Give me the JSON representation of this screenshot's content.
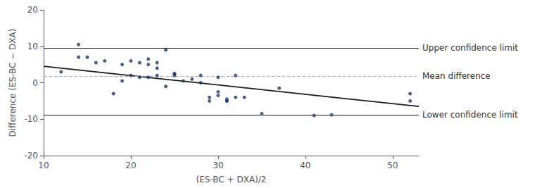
{
  "chart_data": {
    "type": "scatter",
    "xlabel": "(ES-BC + DXA)/2",
    "ylabel": "Difference (ES-BC − DXA)",
    "xlim": [
      10,
      53
    ],
    "ylim": [
      -20,
      20
    ],
    "xticks": [
      10,
      20,
      30,
      40,
      50
    ],
    "yticks": [
      -20,
      -10,
      0,
      10,
      20
    ],
    "grid": false,
    "series": [
      {
        "type": "scatter",
        "color": "#1a3a6b",
        "x": [
          12,
          14,
          14,
          15,
          16,
          17,
          18,
          19,
          19,
          20,
          20,
          21,
          21,
          22,
          22,
          22,
          23,
          23,
          23,
          24,
          24,
          25,
          25,
          25,
          26,
          27,
          28,
          28,
          29,
          29,
          30,
          30,
          30,
          31,
          31,
          31,
          32,
          32,
          33,
          35,
          37,
          41,
          43,
          52,
          52
        ],
        "values": [
          3,
          10.5,
          7,
          7,
          5.5,
          6,
          -3,
          0.5,
          5,
          2,
          6,
          1.5,
          5.5,
          1.5,
          5,
          6.5,
          2,
          4,
          5.5,
          -1,
          9,
          2,
          2.5,
          2.5,
          0.5,
          1,
          0,
          2,
          -4,
          -5,
          1.5,
          -2.5,
          -3.5,
          -5,
          -4.5,
          -5,
          2,
          -4,
          -4,
          -8.5,
          -1.5,
          -9,
          -8.8,
          -3,
          -5
        ]
      },
      {
        "type": "line",
        "color": "#1a1a1a",
        "x": [
          10,
          53
        ],
        "values": [
          4.5,
          -6.5
        ]
      }
    ],
    "annotations": [
      {
        "text": "Upper confidence limit",
        "y": 9.5,
        "color": "#1a1a1a",
        "line_style": "solid"
      },
      {
        "text": "Mean difference",
        "y": 1.8,
        "color": "#aaaaaa",
        "line_style": "dashed"
      },
      {
        "text": "Lower confidence limit",
        "y": -8.8,
        "color": "#1a1a1a",
        "line_style": "solid"
      }
    ]
  }
}
